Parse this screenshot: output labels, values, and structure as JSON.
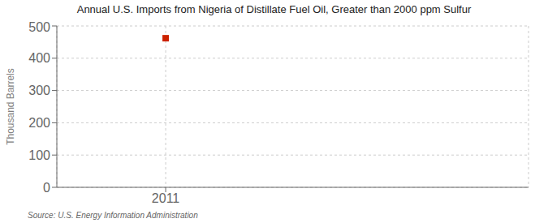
{
  "chart_data": {
    "type": "scatter",
    "title": "Annual U.S. Imports from Nigeria of Distillate Fuel Oil, Greater than 2000 ppm Sulfur",
    "y_label": "Thousand Barrels",
    "x": [
      2011
    ],
    "values": [
      462
    ],
    "color": "#cc2200",
    "marker": "square",
    "xlim": [
      2010.4,
      2013.0
    ],
    "xticks": [
      2011
    ],
    "ylim": [
      0,
      500
    ],
    "yticks": [
      0,
      100,
      200,
      300,
      400,
      500
    ],
    "grid": true,
    "annotations": [
      "Source: U.S. Energy Information Administration"
    ]
  }
}
